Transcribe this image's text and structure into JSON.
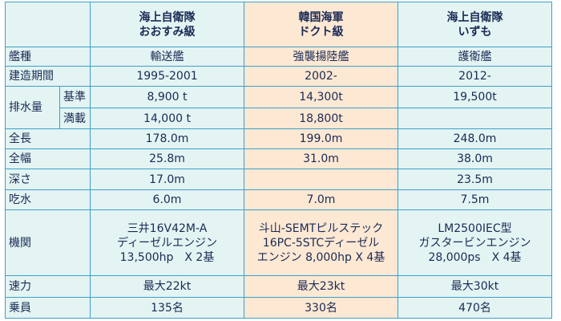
{
  "columns": [
    {
      "line1": "海上自衛隊",
      "line2": "おおすみ級"
    },
    {
      "line1": "韓国海軍",
      "line2": "ドクト級"
    },
    {
      "line1": "海上自衛隊",
      "line2": "いずも"
    }
  ],
  "rows": {
    "ship_type": {
      "label": "艦種",
      "values": [
        "輸送艦",
        "強襲揚陸艦",
        "護衛艦"
      ]
    },
    "build_period": {
      "label": "建造期間",
      "values": [
        "1995-2001",
        "2002-",
        "2012-"
      ]
    },
    "displacement": {
      "label": "排水量",
      "standard": {
        "label": "基準",
        "values": [
          "8,900 t",
          "14,300t",
          "19,500t"
        ]
      },
      "full": {
        "label": "満載",
        "values": [
          "14,000 t",
          "18,800t",
          ""
        ]
      }
    },
    "length": {
      "label": "全長",
      "values": [
        "178.0m",
        "199.0m",
        "248.0m"
      ]
    },
    "beam": {
      "label": "全幅",
      "values": [
        "25.8m",
        "31.0m",
        "38.0m"
      ]
    },
    "depth": {
      "label": "深さ",
      "values": [
        "17.0m",
        "",
        "23.5m"
      ]
    },
    "draft": {
      "label": "吃水",
      "values": [
        "6.0m",
        "7.0m",
        "7.5m"
      ]
    },
    "engine": {
      "label": "機関",
      "values": [
        [
          "三井16V42M-A",
          "ディーゼルエンジン",
          "13,500hp　X 2基"
        ],
        [
          "斗山-SEMTピルステック",
          "16PC-5STCディーゼル",
          "エンジン 8,000hp X 4基"
        ],
        [
          "LM2500IEC型",
          "ガスタービンエンジン",
          "28,000ps　X 4基"
        ]
      ]
    },
    "speed": {
      "label": "速力",
      "values": [
        "最大22kt",
        "最大23kt",
        "最大30kt"
      ]
    },
    "crew": {
      "label": "乗員",
      "values": [
        "135名",
        "330名",
        "470名"
      ]
    }
  }
}
